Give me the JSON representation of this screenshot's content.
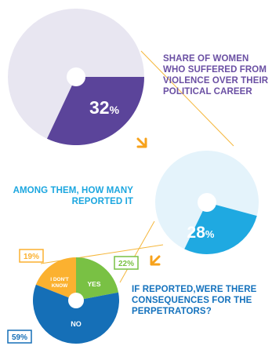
{
  "colors": {
    "purple": "#5b449a",
    "lavender": "#e8e6f1",
    "blue": "#1fa9e1",
    "light_blue": "#e4f3fb",
    "dark_blue": "#156fb7",
    "green": "#79c144",
    "yellow": "#fbb130",
    "connector": "#f5b73c",
    "arrow": "#f7a21b"
  },
  "captions": {
    "share": "SHARE OF WOMEN WHO SUFFERED FROM VIOLENCE OVER THEIR POLITICAL CAREER",
    "reported": "AMONG THEM, HOW MANY REPORTED IT",
    "consequences": "IF REPORTED,WERE THERE CONSEQUENCES FOR THE PERPETRATORS?"
  },
  "chart_data": [
    {
      "type": "pie",
      "slices": [
        {
          "label": "",
          "value": 32,
          "display": "32",
          "unit": "%"
        },
        {
          "label": "",
          "value": 68
        }
      ]
    },
    {
      "type": "pie",
      "slices": [
        {
          "label": "",
          "value": 28,
          "display": "28",
          "unit": "%"
        },
        {
          "label": "",
          "value": 72
        }
      ]
    },
    {
      "type": "pie",
      "slices": [
        {
          "label": "YES",
          "value": 22,
          "display": "22%"
        },
        {
          "label": "I DON'T KNOW",
          "value": 19,
          "display": "19%"
        },
        {
          "label": "NO",
          "value": 59,
          "display": "59%"
        }
      ]
    }
  ]
}
